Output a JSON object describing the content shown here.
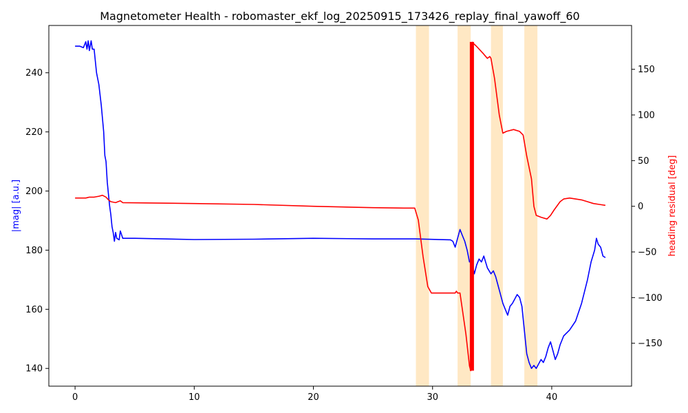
{
  "chart_data": {
    "type": "line",
    "title": "Magnetometer Health - robomaster_ekf_log_20250915_173426_replay_final_yawoff_60",
    "xlabel": "",
    "y_left_label": "|mag| [a.u.]",
    "y_right_label": "heading residual [deg]",
    "xlim": [
      -2.2,
      46.7
    ],
    "ylim_left": [
      134,
      256
    ],
    "ylim_right": [
      -197,
      198
    ],
    "x_ticks": [
      0,
      10,
      20,
      30,
      40
    ],
    "y_left_ticks": [
      140,
      160,
      180,
      200,
      220,
      240
    ],
    "y_right_ticks": [
      -150,
      -100,
      -50,
      0,
      50,
      100,
      150
    ],
    "shaded_spans": [
      [
        28.6,
        29.7
      ],
      [
        32.1,
        33.2
      ],
      [
        34.9,
        35.9
      ],
      [
        37.7,
        38.8
      ]
    ],
    "colors": {
      "mag": "#0000ff",
      "residual": "#ff0000",
      "span": "#ffe8c4"
    },
    "series": [
      {
        "name": "|mag| [a.u.]",
        "axis": "left",
        "color": "#0000ff",
        "points": [
          [
            0.0,
            249
          ],
          [
            0.4,
            249
          ],
          [
            0.7,
            248.5
          ],
          [
            0.9,
            250.5
          ],
          [
            1.0,
            248
          ],
          [
            1.1,
            250.8
          ],
          [
            1.2,
            247.5
          ],
          [
            1.35,
            250.8
          ],
          [
            1.45,
            248
          ],
          [
            1.6,
            248
          ],
          [
            1.8,
            240
          ],
          [
            2.0,
            236
          ],
          [
            2.2,
            229
          ],
          [
            2.4,
            220
          ],
          [
            2.5,
            212
          ],
          [
            2.6,
            210
          ],
          [
            2.7,
            203
          ],
          [
            2.8,
            199
          ],
          [
            2.9,
            195
          ],
          [
            3.0,
            192
          ],
          [
            3.1,
            188
          ],
          [
            3.2,
            186
          ],
          [
            3.3,
            183
          ],
          [
            3.4,
            186
          ],
          [
            3.5,
            184
          ],
          [
            3.7,
            183.5
          ],
          [
            3.8,
            186.5
          ],
          [
            4.0,
            184
          ],
          [
            5,
            184
          ],
          [
            10,
            183.6
          ],
          [
            15,
            183.7
          ],
          [
            20,
            184
          ],
          [
            25,
            183.8
          ],
          [
            28.6,
            183.8
          ],
          [
            31.5,
            183.5
          ],
          [
            31.7,
            183
          ],
          [
            31.9,
            181
          ],
          [
            32.1,
            184
          ],
          [
            32.3,
            187
          ],
          [
            32.5,
            185
          ],
          [
            32.7,
            183
          ],
          [
            32.9,
            180
          ],
          [
            33.0,
            178
          ],
          [
            33.1,
            176
          ],
          [
            33.3,
            176
          ],
          [
            33.5,
            172
          ],
          [
            33.7,
            175
          ],
          [
            33.9,
            177
          ],
          [
            34.1,
            176
          ],
          [
            34.3,
            178
          ],
          [
            34.6,
            174
          ],
          [
            34.9,
            172
          ],
          [
            35.1,
            173
          ],
          [
            35.3,
            171
          ],
          [
            35.5,
            168
          ],
          [
            35.7,
            165
          ],
          [
            35.9,
            162
          ],
          [
            36.1,
            160
          ],
          [
            36.3,
            158
          ],
          [
            36.5,
            161
          ],
          [
            36.7,
            162
          ],
          [
            36.9,
            163.5
          ],
          [
            37.1,
            165
          ],
          [
            37.3,
            164
          ],
          [
            37.5,
            161
          ],
          [
            37.7,
            153
          ],
          [
            37.9,
            145
          ],
          [
            38.1,
            142
          ],
          [
            38.3,
            140
          ],
          [
            38.5,
            141
          ],
          [
            38.7,
            140
          ],
          [
            38.9,
            141.5
          ],
          [
            39.1,
            143
          ],
          [
            39.3,
            142
          ],
          [
            39.5,
            144
          ],
          [
            39.7,
            147
          ],
          [
            39.9,
            149
          ],
          [
            40.1,
            146
          ],
          [
            40.3,
            143
          ],
          [
            40.5,
            145
          ],
          [
            40.7,
            148
          ],
          [
            41.0,
            151
          ],
          [
            41.5,
            153
          ],
          [
            42.0,
            156
          ],
          [
            42.5,
            162
          ],
          [
            43.0,
            170
          ],
          [
            43.3,
            176
          ],
          [
            43.6,
            180
          ],
          [
            43.75,
            184
          ],
          [
            43.9,
            182
          ],
          [
            44.1,
            181
          ],
          [
            44.3,
            178
          ],
          [
            44.5,
            177.5
          ]
        ]
      },
      {
        "name": "heading residual [deg]",
        "axis": "right",
        "color": "#ff0000",
        "points": [
          [
            0.0,
            9
          ],
          [
            0.9,
            9
          ],
          [
            1.2,
            10
          ],
          [
            1.6,
            10
          ],
          [
            2.0,
            11
          ],
          [
            2.3,
            12
          ],
          [
            2.6,
            10
          ],
          [
            2.8,
            7
          ],
          [
            3.0,
            5
          ],
          [
            3.4,
            4
          ],
          [
            3.6,
            5
          ],
          [
            3.8,
            6
          ],
          [
            4.0,
            4
          ],
          [
            10,
            3
          ],
          [
            15,
            2
          ],
          [
            20,
            0
          ],
          [
            25,
            -1.5
          ],
          [
            27.6,
            -2
          ],
          [
            28.2,
            -2
          ],
          [
            28.5,
            -2
          ],
          [
            28.8,
            -15
          ],
          [
            29.2,
            -55
          ],
          [
            29.6,
            -88
          ],
          [
            29.9,
            -95
          ],
          [
            31.9,
            -95
          ],
          [
            32.0,
            -93
          ],
          [
            32.1,
            -95
          ],
          [
            32.3,
            -95
          ],
          [
            32.8,
            -140
          ],
          [
            33.1,
            -175
          ],
          [
            33.2,
            -180
          ],
          [
            33.25,
            -180
          ],
          [
            33.3,
            180
          ],
          [
            33.7,
            175
          ],
          [
            34.2,
            168
          ],
          [
            34.6,
            162
          ],
          [
            34.8,
            164
          ],
          [
            34.9,
            162
          ],
          [
            35.2,
            140
          ],
          [
            35.6,
            100
          ],
          [
            35.9,
            80
          ],
          [
            36.2,
            82
          ],
          [
            36.8,
            84
          ],
          [
            37.3,
            82
          ],
          [
            37.6,
            78
          ],
          [
            37.9,
            55
          ],
          [
            38.3,
            30
          ],
          [
            38.5,
            0
          ],
          [
            38.7,
            -10
          ],
          [
            39.1,
            -12
          ],
          [
            39.6,
            -14
          ],
          [
            39.9,
            -10
          ],
          [
            40.2,
            -4
          ],
          [
            40.7,
            5
          ],
          [
            41.0,
            8
          ],
          [
            41.5,
            9
          ],
          [
            42.0,
            8
          ],
          [
            42.5,
            7
          ],
          [
            43.0,
            5
          ],
          [
            43.5,
            3
          ],
          [
            44.0,
            2
          ],
          [
            44.5,
            1
          ]
        ]
      }
    ],
    "wrap_bar": {
      "x": 33.3,
      "from": -180,
      "to": 180
    }
  }
}
